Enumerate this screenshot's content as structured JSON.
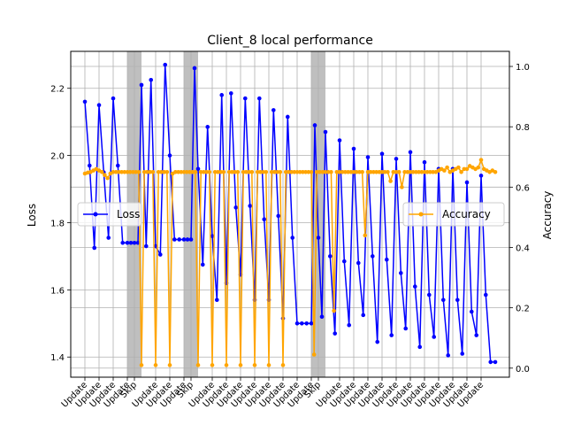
{
  "chart_data": {
    "type": "line",
    "title": "Client_8 local performance",
    "xlabel": "",
    "ylabel": "Loss",
    "y2label": "Accuracy",
    "xlim": [
      -1,
      30
    ],
    "ylim": [
      1.34,
      2.31
    ],
    "y2lim": [
      -0.03,
      1.05
    ],
    "yticks": [
      1.4,
      1.6,
      1.8,
      2.0,
      2.2
    ],
    "y2ticks": [
      0.0,
      0.2,
      0.4,
      0.6,
      0.8,
      1.0
    ],
    "grid": true,
    "xtick_positions": [
      0,
      1,
      2,
      3,
      3.5,
      5,
      6,
      7,
      7.5,
      9,
      10,
      11,
      12,
      13,
      14,
      15,
      16,
      16.5,
      18,
      19,
      20,
      21,
      22,
      23,
      24,
      25,
      26,
      27,
      28
    ],
    "xtick_labels": [
      "Update",
      "Update",
      "Update",
      "Update",
      "Skip",
      "Update",
      "Update",
      "Update",
      "Skip",
      "Update",
      "Update",
      "Update",
      "Update",
      "Update",
      "Update",
      "Update",
      "Update",
      "Skip",
      "Update",
      "Update",
      "Update",
      "Update",
      "Update",
      "Update",
      "Update",
      "Update",
      "Update",
      "Update",
      "Update"
    ],
    "skip_regions": [
      [
        3,
        4
      ],
      [
        7,
        8
      ],
      [
        16,
        17
      ]
    ],
    "series": [
      {
        "name": "Loss",
        "axis": "left",
        "color": "#0000ff",
        "x": [
          0.0,
          0.33,
          0.67,
          1.0,
          1.33,
          1.67,
          2.0,
          2.33,
          2.67,
          3.0,
          3.25,
          3.5,
          3.75,
          4.0,
          4.33,
          4.67,
          5.0,
          5.33,
          5.67,
          6.0,
          6.33,
          6.67,
          7.0,
          7.25,
          7.5,
          7.75,
          8.0,
          8.33,
          8.67,
          9.0,
          9.33,
          9.67,
          10.0,
          10.33,
          10.67,
          11.0,
          11.33,
          11.67,
          12.0,
          12.33,
          12.67,
          13.0,
          13.33,
          13.67,
          14.0,
          14.33,
          14.67,
          15.0,
          15.33,
          15.67,
          16.0,
          16.25,
          16.5,
          16.75,
          17.0,
          17.33,
          17.67,
          18.0,
          18.33,
          18.67,
          19.0,
          19.33,
          19.67,
          20.0,
          20.33,
          20.67,
          21.0,
          21.33,
          21.67,
          22.0,
          22.33,
          22.67,
          23.0,
          23.33,
          23.67,
          24.0,
          24.33,
          24.67,
          25.0,
          25.33,
          25.67,
          26.0,
          26.33,
          26.67,
          27.0,
          27.33,
          27.67,
          28.0,
          28.33,
          28.67,
          29.0
        ],
        "values": [
          2.16,
          1.97,
          1.725,
          2.15,
          1.95,
          1.755,
          2.17,
          1.97,
          1.74,
          1.74,
          1.74,
          1.74,
          1.74,
          2.21,
          1.73,
          2.225,
          1.73,
          1.705,
          2.27,
          2.0,
          1.75,
          1.75,
          1.75,
          1.75,
          1.75,
          2.26,
          1.96,
          1.675,
          2.085,
          1.76,
          1.57,
          2.18,
          1.62,
          2.185,
          1.845,
          1.645,
          2.17,
          1.85,
          1.57,
          2.17,
          1.81,
          1.57,
          2.135,
          1.82,
          1.515,
          2.115,
          1.755,
          1.5,
          1.5,
          1.5,
          1.5,
          2.09,
          1.755,
          1.52,
          2.07,
          1.7,
          1.47,
          2.045,
          1.685,
          1.495,
          2.02,
          1.68,
          1.525,
          1.995,
          1.7,
          1.445,
          2.005,
          1.69,
          1.465,
          1.99,
          1.65,
          1.485,
          2.01,
          1.61,
          1.43,
          1.98,
          1.585,
          1.46,
          1.96,
          1.57,
          1.405,
          1.96,
          1.57,
          1.41,
          1.92,
          1.535,
          1.465,
          1.94,
          1.585,
          1.385,
          1.385
        ]
      },
      {
        "name": "Accuracy",
        "axis": "right",
        "color": "#ffa500",
        "x": [
          0.0,
          0.2,
          0.4,
          0.6,
          0.8,
          1.0,
          1.2,
          1.4,
          1.6,
          1.8,
          2.0,
          2.2,
          2.4,
          2.6,
          2.8,
          3.0,
          3.2,
          3.4,
          3.6,
          3.8,
          4.0,
          4.2,
          4.4,
          4.6,
          4.8,
          5.0,
          5.2,
          5.4,
          5.6,
          5.8,
          6.0,
          6.2,
          6.4,
          6.6,
          6.8,
          7.0,
          7.2,
          7.4,
          7.6,
          7.8,
          8.0,
          8.2,
          8.4,
          8.6,
          8.8,
          9.0,
          9.2,
          9.4,
          9.6,
          9.8,
          10.0,
          10.2,
          10.4,
          10.6,
          10.8,
          11.0,
          11.2,
          11.4,
          11.6,
          11.8,
          12.0,
          12.2,
          12.4,
          12.6,
          12.8,
          13.0,
          13.2,
          13.4,
          13.6,
          13.8,
          14.0,
          14.2,
          14.4,
          14.6,
          14.8,
          15.0,
          15.2,
          15.4,
          15.6,
          15.8,
          16.0,
          16.2,
          16.4,
          16.6,
          16.8,
          17.0,
          17.2,
          17.4,
          17.6,
          17.8,
          18.0,
          18.2,
          18.4,
          18.6,
          18.8,
          19.0,
          19.2,
          19.4,
          19.6,
          19.8,
          20.0,
          20.2,
          20.4,
          20.6,
          20.8,
          21.0,
          21.2,
          21.4,
          21.6,
          21.8,
          22.0,
          22.2,
          22.4,
          22.6,
          22.8,
          23.0,
          23.2,
          23.4,
          23.6,
          23.8,
          24.0,
          24.2,
          24.4,
          24.6,
          24.8,
          25.0,
          25.2,
          25.4,
          25.6,
          25.8,
          26.0,
          26.2,
          26.4,
          26.6,
          26.8,
          27.0,
          27.2,
          27.4,
          27.6,
          27.8,
          28.0,
          28.2,
          28.4,
          28.6,
          28.8,
          29.0
        ],
        "values": [
          0.645,
          0.648,
          0.65,
          0.655,
          0.66,
          0.655,
          0.65,
          0.64,
          0.63,
          0.645,
          0.65,
          0.65,
          0.65,
          0.65,
          0.65,
          0.65,
          0.65,
          0.65,
          0.65,
          0.65,
          0.01,
          0.65,
          0.65,
          0.65,
          0.65,
          0.01,
          0.65,
          0.65,
          0.65,
          0.65,
          0.01,
          0.645,
          0.65,
          0.65,
          0.65,
          0.65,
          0.65,
          0.65,
          0.65,
          0.65,
          0.01,
          0.65,
          0.65,
          0.65,
          0.65,
          0.01,
          0.65,
          0.65,
          0.65,
          0.65,
          0.01,
          0.65,
          0.65,
          0.65,
          0.65,
          0.01,
          0.65,
          0.65,
          0.65,
          0.65,
          0.01,
          0.65,
          0.65,
          0.65,
          0.65,
          0.01,
          0.65,
          0.65,
          0.65,
          0.65,
          0.01,
          0.65,
          0.65,
          0.65,
          0.65,
          0.65,
          0.65,
          0.65,
          0.65,
          0.65,
          0.65,
          0.045,
          0.65,
          0.65,
          0.65,
          0.65,
          0.65,
          0.65,
          0.19,
          0.65,
          0.65,
          0.65,
          0.65,
          0.65,
          0.65,
          0.65,
          0.65,
          0.65,
          0.65,
          0.44,
          0.65,
          0.65,
          0.65,
          0.65,
          0.65,
          0.65,
          0.65,
          0.65,
          0.62,
          0.65,
          0.65,
          0.65,
          0.6,
          0.65,
          0.65,
          0.65,
          0.65,
          0.65,
          0.65,
          0.65,
          0.65,
          0.65,
          0.65,
          0.65,
          0.65,
          0.655,
          0.66,
          0.655,
          0.665,
          0.65,
          0.655,
          0.66,
          0.665,
          0.65,
          0.66,
          0.66,
          0.67,
          0.665,
          0.66,
          0.665,
          0.69,
          0.66,
          0.655,
          0.65,
          0.655,
          0.65
        ]
      }
    ],
    "legends": [
      {
        "placement": "center-left",
        "series": "Loss"
      },
      {
        "placement": "center-right",
        "series": "Accuracy"
      }
    ]
  }
}
